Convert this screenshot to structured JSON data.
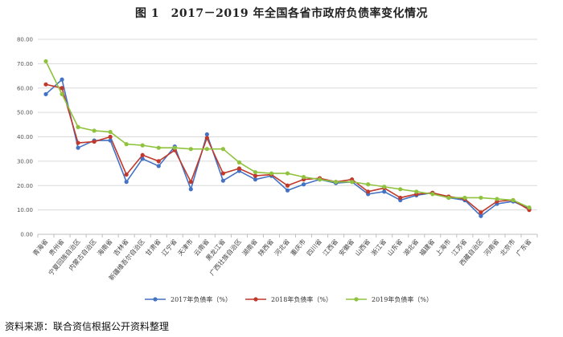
{
  "header": {
    "title": "图 1　2017－2019 年全国各省市政府负债率变化情况"
  },
  "footer": {
    "source": "资料来源：联合资信根据公开资料整理"
  },
  "chart_data": {
    "type": "line",
    "title": "图 1　2017－2019 年全国各省市政府负债率变化情况",
    "ylim": [
      0,
      80
    ],
    "ytick_labels": [
      "0.00",
      "10.00",
      "20.00",
      "30.00",
      "40.00",
      "50.00",
      "60.00",
      "70.00",
      "80.00"
    ],
    "grid": "horizontal",
    "legend_position": "bottom",
    "categories": [
      "青海省",
      "贵州省",
      "宁夏回族自治区",
      "内蒙古自治区",
      "海南省",
      "吉林省",
      "新疆维吾尔自治区",
      "甘肃省",
      "辽宁省",
      "天津市",
      "云南省",
      "黑龙江省",
      "广西壮族自治区",
      "湖南省",
      "陕西省",
      "河北省",
      "重庆市",
      "四川省",
      "江西省",
      "安徽省",
      "山西省",
      "浙江省",
      "山东省",
      "湖北省",
      "福建省",
      "上海市",
      "江苏省",
      "西藏自治区",
      "河南省",
      "北京市",
      "广东省"
    ],
    "series": [
      {
        "name": "2017年负债率（%）",
        "color": "#4472c4",
        "values": [
          57.5,
          63.5,
          35.5,
          38.5,
          38.5,
          21.5,
          31.0,
          28.0,
          36.0,
          18.5,
          41.0,
          22.0,
          26.0,
          22.5,
          24.0,
          18.0,
          20.5,
          22.5,
          21.0,
          21.5,
          16.5,
          17.5,
          14.0,
          16.0,
          17.0,
          15.0,
          14.0,
          7.5,
          12.5,
          13.5,
          10.5
        ]
      },
      {
        "name": "2018年负债率（%）",
        "color": "#c0392b",
        "values": [
          61.5,
          60.0,
          37.5,
          38.0,
          40.0,
          24.5,
          32.5,
          30.0,
          34.5,
          21.5,
          39.5,
          25.0,
          27.0,
          24.0,
          24.5,
          20.0,
          22.5,
          23.0,
          21.5,
          22.5,
          17.5,
          19.0,
          15.0,
          16.5,
          17.0,
          15.5,
          14.5,
          9.0,
          13.5,
          14.0,
          10.0
        ]
      },
      {
        "name": "2019年负债率（%）",
        "color": "#8fc33e",
        "values": [
          71.0,
          57.5,
          44.0,
          42.5,
          42.0,
          37.0,
          36.5,
          35.5,
          35.5,
          35.0,
          35.0,
          35.0,
          29.5,
          25.5,
          25.0,
          25.0,
          23.5,
          22.5,
          21.5,
          21.5,
          20.5,
          19.5,
          18.5,
          17.5,
          16.5,
          15.0,
          15.0,
          15.0,
          14.5,
          14.0,
          11.0
        ]
      }
    ]
  }
}
